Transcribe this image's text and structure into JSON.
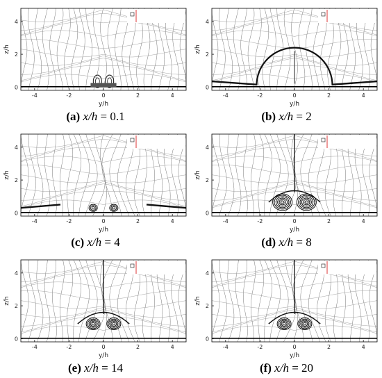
{
  "panels": [
    {
      "id": "a",
      "letter": "(a)",
      "var": "x/h",
      "eq": " = 0.1",
      "value": 0.1,
      "structure": "near-wall"
    },
    {
      "id": "b",
      "letter": "(b)",
      "var": "x/h",
      "eq": " = 2",
      "value": 2,
      "structure": "dome"
    },
    {
      "id": "c",
      "letter": "(c)",
      "var": "x/h",
      "eq": " = 4",
      "value": 4,
      "structure": "small-pair"
    },
    {
      "id": "d",
      "letter": "(d)",
      "var": "x/h",
      "eq": " = 8",
      "value": 8,
      "structure": "large-pair"
    },
    {
      "id": "e",
      "letter": "(e)",
      "var": "x/h",
      "eq": " = 14",
      "value": 14,
      "structure": "raised-pair"
    },
    {
      "id": "f",
      "letter": "(f)",
      "var": "x/h",
      "eq": " = 20",
      "value": 20,
      "structure": "raised-pair"
    }
  ],
  "axes": {
    "xlabel": "y/h",
    "ylabel": "z/h",
    "xticks": [
      "-4",
      "-2",
      "0",
      "2",
      "4"
    ],
    "yticks": [
      "0",
      "2",
      "4"
    ],
    "xlim": [
      -4.8,
      4.8
    ],
    "ylim": [
      -0.2,
      4.8
    ]
  }
}
